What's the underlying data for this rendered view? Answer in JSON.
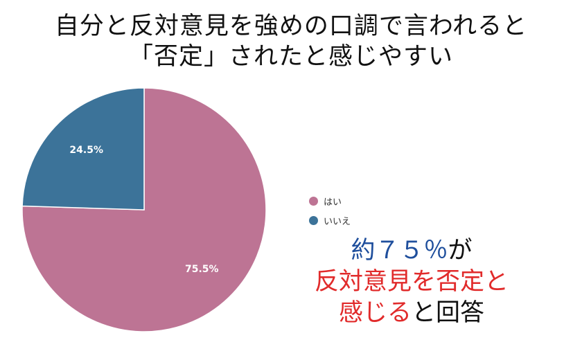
{
  "title": {
    "line1": "自分と反対意見を強めの口調で言われると",
    "line2": "「否定」されたと感じやすい"
  },
  "chart_data": {
    "type": "pie",
    "categories": [
      "はい",
      "いいえ"
    ],
    "values": [
      75.5,
      24.5
    ],
    "value_labels": [
      "75.5%",
      "24.5%"
    ],
    "colors": [
      "#bd7494",
      "#3c7399"
    ],
    "start_angle_deg": 0,
    "direction": "clockwise",
    "legend_position": "right"
  },
  "callout": {
    "line1_blue": "約７５％",
    "line1_black": "が",
    "line2_red": "反対意見を否定と",
    "line3_red": "感じる",
    "line3_black": "と回答"
  }
}
